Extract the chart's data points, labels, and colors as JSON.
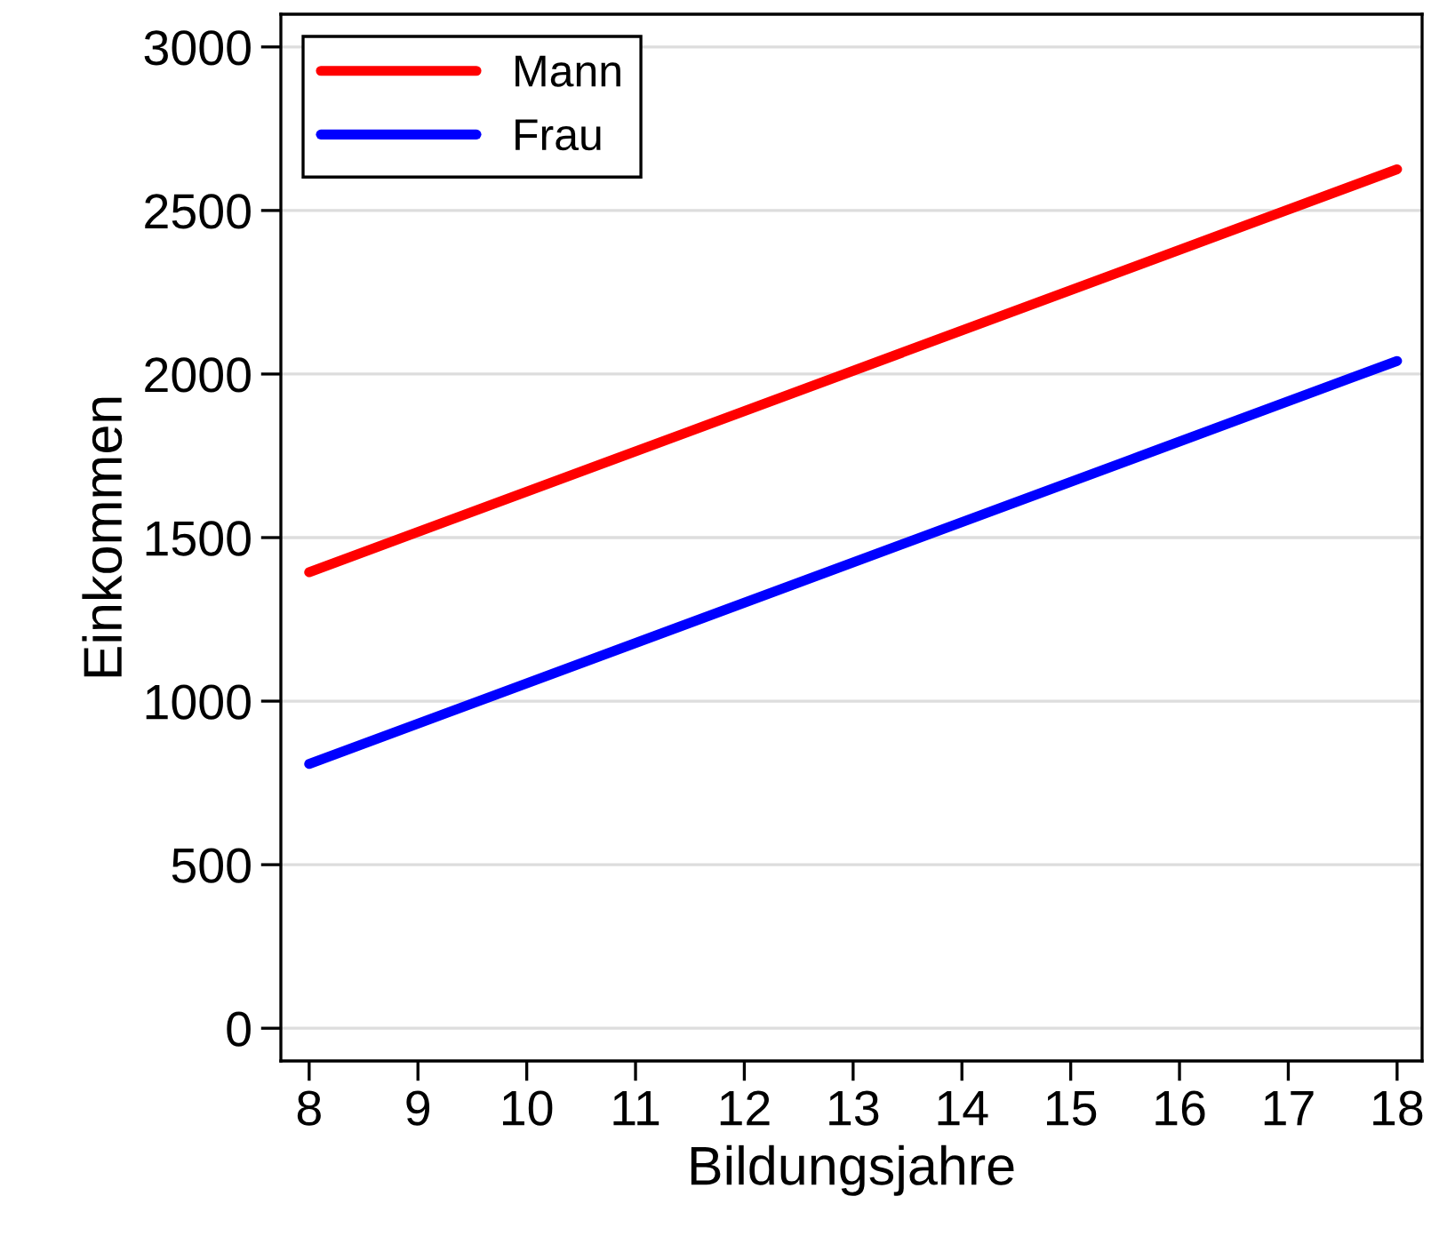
{
  "chart_data": {
    "type": "line",
    "xlabel": "Bildungsjahre",
    "ylabel": "Einkommen",
    "x": [
      8,
      18
    ],
    "series": [
      {
        "name": "Mann",
        "color": "#ff0000",
        "values": [
          1394,
          2626
        ]
      },
      {
        "name": "Frau",
        "color": "#0000ff",
        "values": [
          808,
          2040
        ]
      }
    ],
    "xlim": [
      7.74,
      18.23
    ],
    "ylim": [
      -100,
      3100
    ],
    "xticks": [
      8,
      9,
      10,
      11,
      12,
      13,
      14,
      15,
      16,
      17,
      18
    ],
    "yticks": [
      0,
      500,
      1000,
      1500,
      2000,
      2500,
      3000
    ],
    "grid": "y",
    "legend": "top left",
    "marker": "none",
    "line_style": "solid"
  }
}
